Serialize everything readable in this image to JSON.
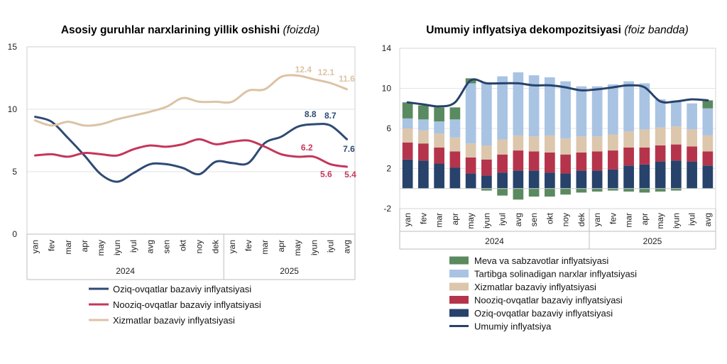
{
  "chart_data": [
    {
      "type": "line",
      "title": "Asosiy guruhlar narxlarining yillik oshishi",
      "title_unit": "(foizda)",
      "categories": [
        "yan",
        "fev",
        "mar",
        "apr",
        "may",
        "iyun",
        "iyul",
        "avg",
        "sen",
        "okt",
        "noy",
        "dek",
        "yan",
        "fev",
        "mar",
        "apr",
        "may",
        "iyun",
        "iyul",
        "avg"
      ],
      "years": [
        {
          "label": "2024",
          "from": 0,
          "to": 11
        },
        {
          "label": "2025",
          "from": 12,
          "to": 19
        }
      ],
      "ylim": [
        0,
        15
      ],
      "yticks": [
        0,
        5,
        10,
        15
      ],
      "legend_position": "bottom",
      "series": [
        {
          "name": "Oziq-ovqatlar bazaviy inflyatsiyasi",
          "color": "#2e4a74",
          "values": [
            9.4,
            9.0,
            7.7,
            6.3,
            4.8,
            4.2,
            4.9,
            5.6,
            5.6,
            5.3,
            4.8,
            5.8,
            5.7,
            5.7,
            7.3,
            7.8,
            8.6,
            8.8,
            8.7,
            7.6
          ],
          "labels": [
            {
              "index": 17,
              "text": "8.8"
            },
            {
              "index": 18,
              "text": "8.7"
            },
            {
              "index": 19,
              "text": "7.6"
            }
          ]
        },
        {
          "name": "Nooziq-ovqatlar bazaviy inflyatsiyasi",
          "color": "#c5365a",
          "values": [
            6.3,
            6.4,
            6.2,
            6.5,
            6.4,
            6.3,
            6.8,
            7.1,
            7.0,
            7.2,
            7.6,
            7.2,
            7.4,
            7.5,
            7.0,
            6.4,
            6.2,
            6.2,
            5.6,
            5.4
          ],
          "labels": [
            {
              "index": 17,
              "text": "6.2"
            },
            {
              "index": 18,
              "text": "5.6"
            },
            {
              "index": 19,
              "text": "5.4"
            }
          ]
        },
        {
          "name": "Xizmatlar bazaviy inflyatsiyasi",
          "color": "#dcc3a4",
          "values": [
            9.1,
            8.7,
            9.0,
            8.7,
            8.8,
            9.2,
            9.5,
            9.8,
            10.2,
            10.9,
            10.6,
            10.6,
            10.6,
            11.5,
            11.6,
            12.6,
            12.7,
            12.4,
            12.1,
            11.6
          ],
          "labels": [
            {
              "index": 17,
              "text": "12.4"
            },
            {
              "index": 18,
              "text": "12.1"
            },
            {
              "index": 19,
              "text": "11.6"
            }
          ]
        }
      ]
    },
    {
      "type": "bar",
      "stacked": true,
      "title": "Umumiy inflyatsiya dekompozitsiyasi",
      "title_unit": "(foiz bandda)",
      "categories": [
        "yan",
        "fev",
        "mar",
        "apr",
        "may",
        "iyun",
        "iyul",
        "avg",
        "sen",
        "okt",
        "noy",
        "dek",
        "yan",
        "fev",
        "mar",
        "apr",
        "may",
        "iyun",
        "iyul",
        "avg"
      ],
      "years": [
        {
          "label": "2024",
          "from": 0,
          "to": 11
        },
        {
          "label": "2025",
          "from": 12,
          "to": 19
        }
      ],
      "ylim": [
        -2,
        14
      ],
      "yticks": [
        -2,
        2,
        6,
        10,
        14
      ],
      "legend_position": "bottom",
      "series": [
        {
          "name": "Oziq-ovqatlar bazaviy inflyatsiyasi",
          "color": "#27426b",
          "values": [
            2.9,
            2.8,
            2.5,
            2.1,
            1.5,
            1.3,
            1.6,
            1.8,
            1.8,
            1.6,
            1.5,
            1.8,
            1.8,
            1.9,
            2.3,
            2.4,
            2.7,
            2.8,
            2.7,
            2.3
          ]
        },
        {
          "name": "Nooziq-ovqatlar bazaviy inflyatsiyasi",
          "color": "#b5344c",
          "values": [
            1.7,
            1.7,
            1.6,
            1.6,
            1.6,
            1.6,
            1.8,
            2.0,
            1.9,
            2.0,
            1.9,
            1.8,
            1.9,
            1.9,
            1.8,
            1.7,
            1.6,
            1.6,
            1.5,
            1.4
          ]
        },
        {
          "name": "Xizmatlar bazaviy inflyatsiyasi",
          "color": "#dcc6ac",
          "values": [
            1.4,
            1.3,
            1.4,
            1.4,
            1.4,
            1.4,
            1.5,
            1.5,
            1.5,
            1.7,
            1.6,
            1.6,
            1.5,
            1.6,
            1.6,
            1.8,
            1.8,
            1.8,
            1.7,
            1.6
          ]
        },
        {
          "name": "Tartibga solinadigan narxlar inflyatsiyasi",
          "color": "#a9c3e3",
          "values": [
            1.0,
            1.1,
            1.2,
            1.8,
            6.0,
            6.3,
            6.3,
            6.3,
            6.1,
            5.8,
            5.7,
            5.0,
            5.0,
            5.0,
            5.0,
            4.6,
            2.8,
            2.5,
            2.6,
            2.7
          ]
        },
        {
          "name": "Meva va sabzavotlar inflyatsiyasi",
          "color": "#5a8a5f",
          "values": [
            1.6,
            1.4,
            1.4,
            1.2,
            0.5,
            -0.2,
            -0.7,
            -1.1,
            -0.8,
            -0.8,
            -0.6,
            -0.4,
            -0.3,
            -0.2,
            -0.3,
            -0.4,
            -0.3,
            -0.2,
            0.0,
            0.8
          ]
        }
      ],
      "line": {
        "name": "Umumiy inflyatsiya",
        "color": "#27426b",
        "values": [
          8.6,
          8.4,
          8.2,
          8.6,
          10.8,
          10.5,
          10.5,
          10.5,
          10.3,
          10.3,
          10.1,
          9.8,
          9.9,
          10.1,
          10.3,
          10.1,
          8.7,
          8.7,
          8.9,
          8.8
        ]
      },
      "legend_order": [
        4,
        3,
        2,
        1,
        0,
        "line"
      ]
    }
  ]
}
